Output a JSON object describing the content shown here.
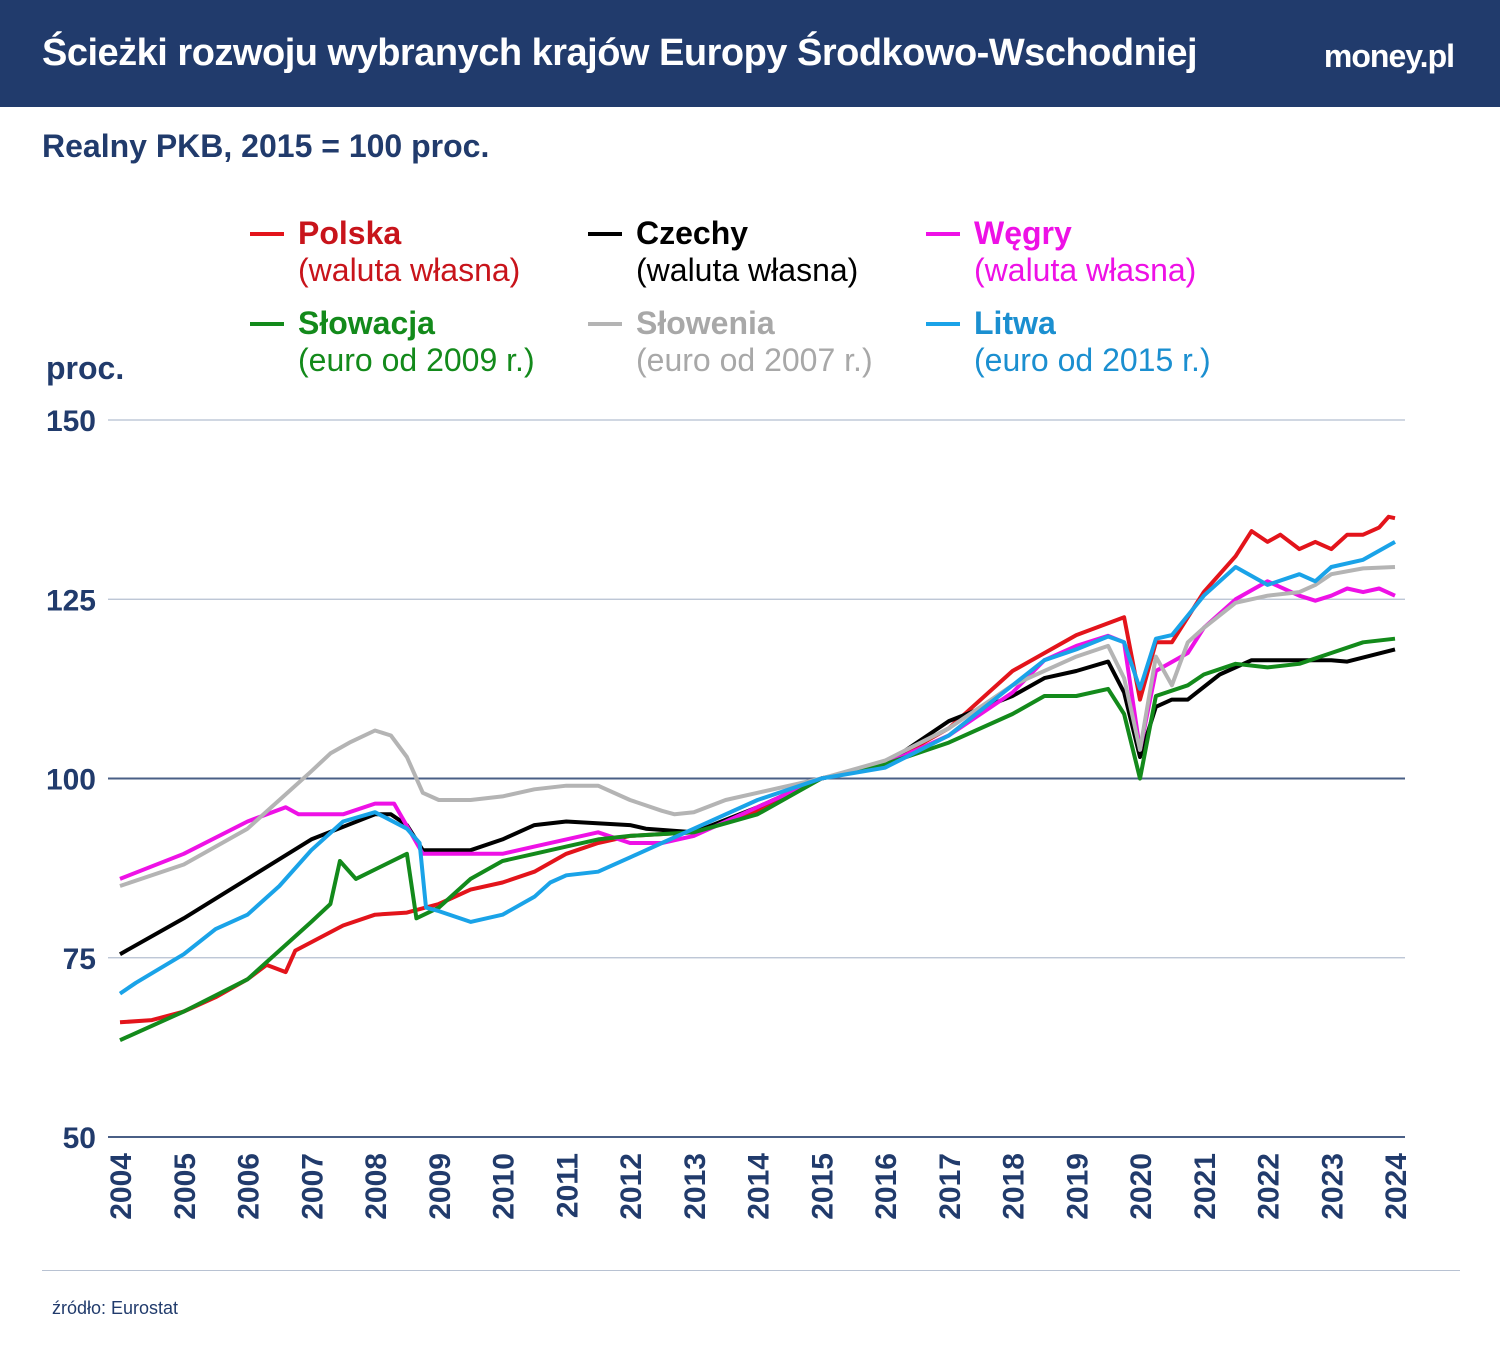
{
  "header": {
    "title": "Ścieżki rozwoju wybranych krajów Europy Środkowo-Wschodniej",
    "logo": "money.pl"
  },
  "subtitle": "Realny PKB, 2015 = 100 proc.",
  "source": "źródło: Eurostat",
  "chart_data": {
    "type": "line",
    "title": "Realny PKB, 2015 = 100 proc.",
    "ylabel": "proc.",
    "xlabel": "",
    "ylim": [
      50,
      150
    ],
    "xlim": [
      2004,
      2024
    ],
    "yticks": [
      150,
      125,
      100,
      75,
      50
    ],
    "xticks": [
      "2004",
      "2005",
      "2006",
      "2007",
      "2008",
      "2009",
      "2010",
      "2011",
      "2012",
      "2013",
      "2014",
      "2015",
      "2016",
      "2017",
      "2018",
      "2019",
      "2020",
      "2021",
      "2022",
      "2023",
      "2024"
    ],
    "grid": true,
    "legend": "top",
    "series": [
      {
        "name": "Polska",
        "note": "(waluta własna)",
        "color": "#e3141b",
        "points": [
          [
            2004,
            66
          ],
          [
            2004.5,
            66.3
          ],
          [
            2005,
            67.5
          ],
          [
            2005.5,
            69.5
          ],
          [
            2006,
            72
          ],
          [
            2006.3,
            74
          ],
          [
            2006.6,
            73
          ],
          [
            2006.75,
            76
          ],
          [
            2007.5,
            79.5
          ],
          [
            2008,
            81
          ],
          [
            2008.5,
            81.3
          ],
          [
            2009,
            82.5
          ],
          [
            2009.5,
            84.5
          ],
          [
            2010,
            85.5
          ],
          [
            2010.5,
            87
          ],
          [
            2011,
            89.5
          ],
          [
            2011.5,
            91
          ],
          [
            2012,
            92
          ],
          [
            2013,
            92.5
          ],
          [
            2014,
            95.5
          ],
          [
            2015,
            100
          ],
          [
            2016,
            102
          ],
          [
            2017,
            107
          ],
          [
            2018,
            115
          ],
          [
            2019,
            120
          ],
          [
            2019.75,
            122.5
          ],
          [
            2020,
            111
          ],
          [
            2020.25,
            119
          ],
          [
            2020.5,
            119
          ],
          [
            2021,
            126
          ],
          [
            2021.5,
            131
          ],
          [
            2021.75,
            134.5
          ],
          [
            2022,
            133
          ],
          [
            2022.2,
            134
          ],
          [
            2022.5,
            132
          ],
          [
            2022.75,
            133
          ],
          [
            2023,
            132
          ],
          [
            2023.25,
            134
          ],
          [
            2023.5,
            134
          ],
          [
            2023.75,
            135
          ],
          [
            2023.9,
            136.5
          ],
          [
            2024,
            136.3
          ]
        ]
      },
      {
        "name": "Czechy",
        "note": "(waluta własna)",
        "color": "#000000",
        "points": [
          [
            2004,
            75.5
          ],
          [
            2005,
            80.5
          ],
          [
            2006,
            86
          ],
          [
            2007,
            91.5
          ],
          [
            2008,
            95
          ],
          [
            2008.25,
            95
          ],
          [
            2008.5,
            93.5
          ],
          [
            2008.75,
            90
          ],
          [
            2009.5,
            90
          ],
          [
            2010,
            91.5
          ],
          [
            2010.5,
            93.5
          ],
          [
            2011,
            94
          ],
          [
            2012,
            93.5
          ],
          [
            2012.25,
            93
          ],
          [
            2013,
            92.5
          ],
          [
            2014,
            96
          ],
          [
            2015,
            100
          ],
          [
            2016,
            102
          ],
          [
            2017,
            108
          ],
          [
            2018,
            111.5
          ],
          [
            2018.5,
            114
          ],
          [
            2019,
            115
          ],
          [
            2019.5,
            116.3
          ],
          [
            2019.75,
            112
          ],
          [
            2020,
            103
          ],
          [
            2020.25,
            110
          ],
          [
            2020.5,
            111
          ],
          [
            2020.75,
            111
          ],
          [
            2021.25,
            114.5
          ],
          [
            2021.75,
            116.5
          ],
          [
            2023,
            116.5
          ],
          [
            2023.25,
            116.3
          ],
          [
            2024,
            118
          ]
        ]
      },
      {
        "name": "Węgry",
        "note": "(waluta własna)",
        "color": "#ee11e6",
        "points": [
          [
            2004,
            86
          ],
          [
            2005,
            89.5
          ],
          [
            2006,
            94
          ],
          [
            2006.6,
            96
          ],
          [
            2006.8,
            95
          ],
          [
            2007.5,
            95
          ],
          [
            2008,
            96.5
          ],
          [
            2008.3,
            96.5
          ],
          [
            2008.75,
            89.5
          ],
          [
            2010,
            89.5
          ],
          [
            2010.5,
            90.5
          ],
          [
            2011,
            91.5
          ],
          [
            2011.5,
            92.5
          ],
          [
            2012,
            91
          ],
          [
            2012.5,
            91
          ],
          [
            2013,
            92
          ],
          [
            2014,
            96
          ],
          [
            2015,
            100
          ],
          [
            2016,
            102
          ],
          [
            2017,
            106
          ],
          [
            2018,
            112
          ],
          [
            2018.5,
            116.5
          ],
          [
            2019,
            118.5
          ],
          [
            2019.5,
            119.9
          ],
          [
            2019.75,
            119
          ],
          [
            2020,
            104
          ],
          [
            2020.25,
            115
          ],
          [
            2020.75,
            117.5
          ],
          [
            2021,
            121
          ],
          [
            2021.5,
            125
          ],
          [
            2022,
            127.5
          ],
          [
            2022.5,
            125.5
          ],
          [
            2022.75,
            124.8
          ],
          [
            2023,
            125.5
          ],
          [
            2023.25,
            126.5
          ],
          [
            2023.5,
            126
          ],
          [
            2023.75,
            126.5
          ],
          [
            2024,
            125.5
          ]
        ]
      },
      {
        "name": "Słowacja",
        "note": "(euro od 2009 r.)",
        "color": "#138a1b",
        "points": [
          [
            2004,
            63.5
          ],
          [
            2005,
            67.5
          ],
          [
            2006,
            72
          ],
          [
            2006.5,
            76
          ],
          [
            2007,
            80
          ],
          [
            2007.3,
            82.5
          ],
          [
            2007.45,
            88.5
          ],
          [
            2007.7,
            86
          ],
          [
            2008.5,
            89.5
          ],
          [
            2008.65,
            80.5
          ],
          [
            2009,
            82
          ],
          [
            2009.5,
            86
          ],
          [
            2010,
            88.5
          ],
          [
            2010.5,
            89.5
          ],
          [
            2011,
            90.5
          ],
          [
            2011.5,
            91.5
          ],
          [
            2012,
            92
          ],
          [
            2013,
            92.5
          ],
          [
            2014,
            95
          ],
          [
            2015,
            100
          ],
          [
            2016,
            102
          ],
          [
            2017,
            105
          ],
          [
            2018,
            109
          ],
          [
            2018.5,
            111.5
          ],
          [
            2019,
            111.5
          ],
          [
            2019.5,
            112.5
          ],
          [
            2019.75,
            109
          ],
          [
            2020,
            100
          ],
          [
            2020.25,
            111.5
          ],
          [
            2020.75,
            113
          ],
          [
            2021,
            114.5
          ],
          [
            2021.5,
            116
          ],
          [
            2022,
            115.5
          ],
          [
            2022.5,
            116
          ],
          [
            2023,
            117.5
          ],
          [
            2023.5,
            119
          ],
          [
            2024,
            119.5
          ]
        ]
      },
      {
        "name": "Słowenia",
        "note": "(euro od 2007 r.)",
        "color": "#b4b4b4",
        "points": [
          [
            2004,
            85
          ],
          [
            2005,
            88
          ],
          [
            2006,
            93
          ],
          [
            2006.5,
            97
          ],
          [
            2007,
            101
          ],
          [
            2007.3,
            103.5
          ],
          [
            2007.6,
            105
          ],
          [
            2008,
            106.7
          ],
          [
            2008.25,
            106
          ],
          [
            2008.5,
            103
          ],
          [
            2008.75,
            98
          ],
          [
            2009,
            97
          ],
          [
            2009.5,
            97
          ],
          [
            2010,
            97.5
          ],
          [
            2010.5,
            98.5
          ],
          [
            2011,
            99
          ],
          [
            2011.5,
            99
          ],
          [
            2012,
            97
          ],
          [
            2012.5,
            95.5
          ],
          [
            2012.7,
            95
          ],
          [
            2013,
            95.3
          ],
          [
            2013.5,
            97
          ],
          [
            2014,
            98
          ],
          [
            2015,
            100
          ],
          [
            2016,
            102.5
          ],
          [
            2017,
            107
          ],
          [
            2018,
            113
          ],
          [
            2019,
            117
          ],
          [
            2019.5,
            118.5
          ],
          [
            2019.75,
            114
          ],
          [
            2020,
            104
          ],
          [
            2020.25,
            117
          ],
          [
            2020.5,
            113
          ],
          [
            2020.75,
            119
          ],
          [
            2021,
            121
          ],
          [
            2021.5,
            124.5
          ],
          [
            2022,
            125.5
          ],
          [
            2022.5,
            126
          ],
          [
            2022.75,
            127
          ],
          [
            2023,
            128.5
          ],
          [
            2023.5,
            129.3
          ],
          [
            2024,
            129.5
          ]
        ]
      },
      {
        "name": "Litwa",
        "note": "(euro od 2015 r.)",
        "color": "#1aa3e8",
        "points": [
          [
            2004,
            70
          ],
          [
            2004.25,
            71.5
          ],
          [
            2005,
            75.5
          ],
          [
            2005.5,
            79
          ],
          [
            2006,
            81
          ],
          [
            2006.5,
            85
          ],
          [
            2007,
            90
          ],
          [
            2007.5,
            94
          ],
          [
            2008,
            95.3
          ],
          [
            2008.5,
            93
          ],
          [
            2008.7,
            91
          ],
          [
            2008.8,
            82
          ],
          [
            2009,
            81.5
          ],
          [
            2009.5,
            80
          ],
          [
            2010,
            81
          ],
          [
            2010.5,
            83.5
          ],
          [
            2010.75,
            85.5
          ],
          [
            2011,
            86.5
          ],
          [
            2011.5,
            87
          ],
          [
            2012,
            89
          ],
          [
            2012.5,
            91
          ],
          [
            2013,
            93
          ],
          [
            2014,
            97
          ],
          [
            2015,
            100
          ],
          [
            2016,
            101.5
          ],
          [
            2017,
            106
          ],
          [
            2018,
            113
          ],
          [
            2018.5,
            116.5
          ],
          [
            2019,
            118
          ],
          [
            2019.5,
            119.8
          ],
          [
            2019.75,
            119
          ],
          [
            2020,
            112.5
          ],
          [
            2020.25,
            119.5
          ],
          [
            2020.5,
            120
          ],
          [
            2021,
            125.5
          ],
          [
            2021.5,
            129.5
          ],
          [
            2022,
            127
          ],
          [
            2022.5,
            128.5
          ],
          [
            2022.75,
            127.5
          ],
          [
            2023,
            129.5
          ],
          [
            2023.5,
            130.5
          ],
          [
            2024,
            133
          ]
        ]
      }
    ]
  }
}
